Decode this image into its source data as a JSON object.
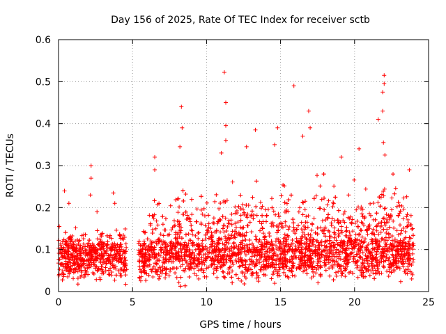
{
  "chart_data": {
    "type": "scatter",
    "title": "Day 156 of 2025, Rate Of TEC Index for receiver sctb",
    "xlabel": "GPS time / hours",
    "ylabel": "ROTI / TECUs",
    "xlim": [
      0,
      25
    ],
    "ylim": [
      0,
      0.6
    ],
    "xticks": [
      0,
      5,
      10,
      15,
      20,
      25
    ],
    "yticks": [
      0,
      0.1,
      0.2,
      0.3,
      0.4,
      0.5,
      0.6
    ],
    "grid": true,
    "marker": "plus",
    "color": "#ff0000",
    "data_gap_hours": [
      4.6,
      5.4
    ],
    "bulk_range": [
      0.01,
      0.16
    ],
    "notable_points": [
      {
        "x": 0.05,
        "y": 0.155
      },
      {
        "x": 0.4,
        "y": 0.24
      },
      {
        "x": 0.7,
        "y": 0.21
      },
      {
        "x": 2.2,
        "y": 0.3
      },
      {
        "x": 2.2,
        "y": 0.27
      },
      {
        "x": 2.15,
        "y": 0.23
      },
      {
        "x": 2.6,
        "y": 0.19
      },
      {
        "x": 3.7,
        "y": 0.235
      },
      {
        "x": 3.8,
        "y": 0.21
      },
      {
        "x": 6.5,
        "y": 0.32
      },
      {
        "x": 6.5,
        "y": 0.29
      },
      {
        "x": 8.3,
        "y": 0.44
      },
      {
        "x": 8.35,
        "y": 0.39
      },
      {
        "x": 8.2,
        "y": 0.345
      },
      {
        "x": 11.2,
        "y": 0.522
      },
      {
        "x": 11.3,
        "y": 0.45
      },
      {
        "x": 11.3,
        "y": 0.395
      },
      {
        "x": 11.3,
        "y": 0.36
      },
      {
        "x": 11.0,
        "y": 0.33
      },
      {
        "x": 12.7,
        "y": 0.345
      },
      {
        "x": 13.3,
        "y": 0.385
      },
      {
        "x": 14.8,
        "y": 0.39
      },
      {
        "x": 14.6,
        "y": 0.35
      },
      {
        "x": 15.9,
        "y": 0.49
      },
      {
        "x": 16.5,
        "y": 0.37
      },
      {
        "x": 16.9,
        "y": 0.43
      },
      {
        "x": 17.0,
        "y": 0.39
      },
      {
        "x": 19.1,
        "y": 0.32
      },
      {
        "x": 20.3,
        "y": 0.34
      },
      {
        "x": 21.6,
        "y": 0.41
      },
      {
        "x": 22.0,
        "y": 0.515
      },
      {
        "x": 22.0,
        "y": 0.495
      },
      {
        "x": 21.9,
        "y": 0.475
      },
      {
        "x": 21.9,
        "y": 0.43
      },
      {
        "x": 21.95,
        "y": 0.355
      },
      {
        "x": 22.05,
        "y": 0.325
      },
      {
        "x": 23.7,
        "y": 0.29
      },
      {
        "x": 22.6,
        "y": 0.28
      }
    ]
  }
}
